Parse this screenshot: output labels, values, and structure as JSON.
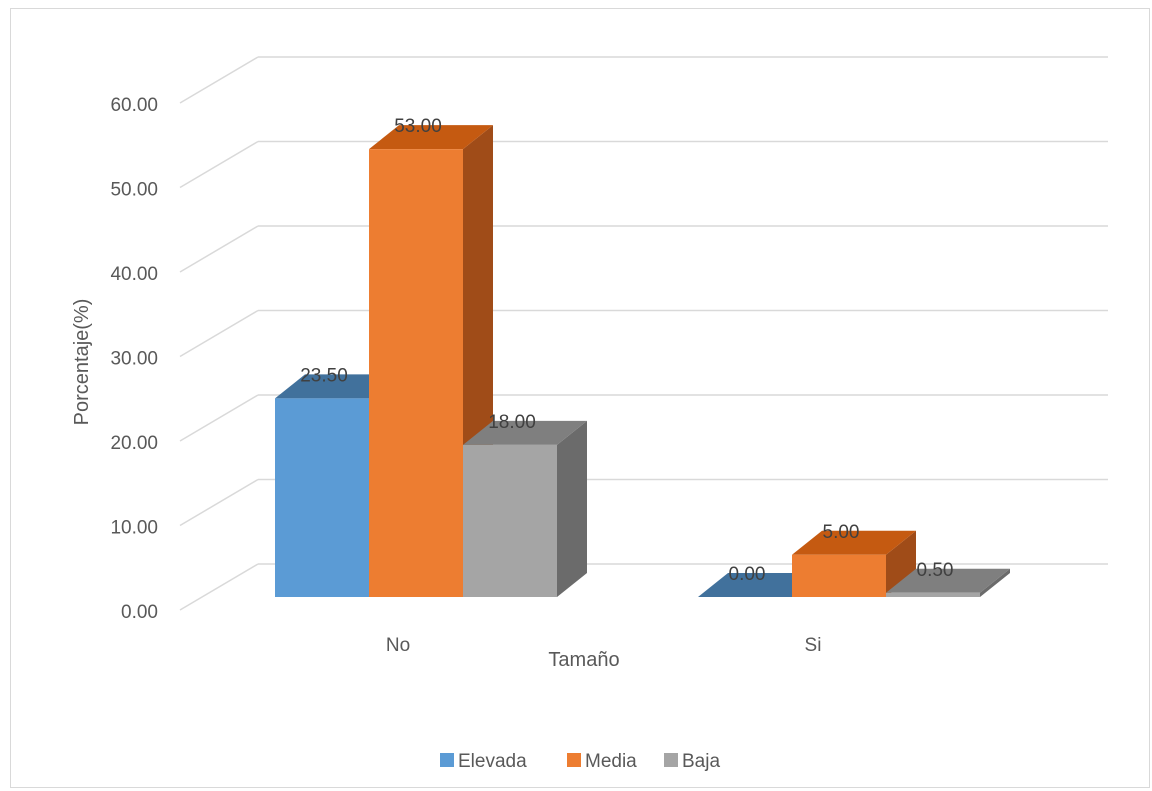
{
  "chart_data": {
    "type": "bar",
    "categories": [
      "No",
      "Si"
    ],
    "series": [
      {
        "name": "Elevada",
        "values": [
          23.5,
          0.0
        ],
        "color": "#5b9bd5",
        "top_color": "#41719c",
        "side_color": "#2e5e8a"
      },
      {
        "name": "Media",
        "values": [
          53.0,
          5.0
        ],
        "color": "#ed7d31",
        "top_color": "#c55a11",
        "side_color": "#a04c18"
      },
      {
        "name": "Baja",
        "values": [
          18.0,
          0.5
        ],
        "color": "#a5a5a5",
        "top_color": "#7f7f7f",
        "side_color": "#6b6b6b"
      }
    ],
    "value_labels": [
      [
        "23.50",
        "0.00"
      ],
      [
        "53.00",
        "5.00"
      ],
      [
        "18.00",
        "0.50"
      ]
    ],
    "y_ticks": [
      "0.00",
      "10.00",
      "20.00",
      "30.00",
      "40.00",
      "50.00",
      "60.00"
    ],
    "y_tick_values": [
      0,
      10,
      20,
      30,
      40,
      50,
      60
    ],
    "ylim": [
      0,
      60
    ],
    "xlabel": "Tamaño",
    "ylabel": "Porcentaje(%)",
    "grid": true,
    "legend": "bottom",
    "three_d": true
  }
}
